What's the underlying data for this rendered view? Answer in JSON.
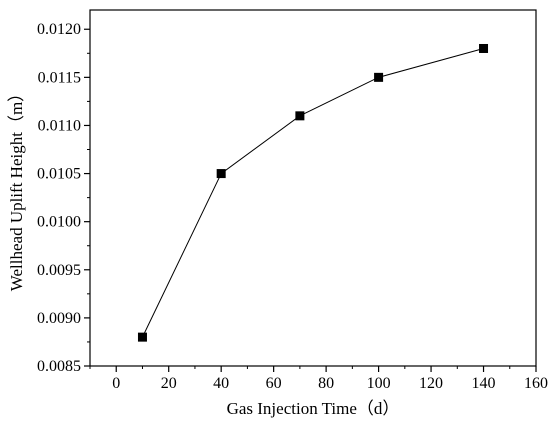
{
  "chart_data": {
    "type": "line",
    "title": "",
    "xlabel": "Gas Injection Time（d）",
    "ylabel": "Wellhead Uplift Height（m）",
    "xlim": [
      -10,
      160
    ],
    "ylim": [
      0.0085,
      0.0122
    ],
    "x_ticks": [
      0,
      20,
      40,
      60,
      80,
      100,
      120,
      140,
      160
    ],
    "x_tick_labels": [
      "0",
      "20",
      "40",
      "60",
      "80",
      "100",
      "120",
      "140",
      "160"
    ],
    "y_ticks": [
      0.0085,
      0.009,
      0.0095,
      0.01,
      0.0105,
      0.011,
      0.0115,
      0.012
    ],
    "y_tick_labels": [
      "0.0085",
      "0.0090",
      "0.0095",
      "0.0100",
      "0.0105",
      "0.0110",
      "0.0115",
      "0.0120"
    ],
    "grid": false,
    "legend": "none",
    "marker": "square",
    "series": [
      {
        "x": [
          10,
          40,
          70,
          100,
          140
        ],
        "y": [
          0.0088,
          0.0105,
          0.0111,
          0.0115,
          0.0118
        ]
      }
    ],
    "colors": {
      "line": "#000000",
      "marker": "#000000",
      "axis": "#000000"
    }
  }
}
